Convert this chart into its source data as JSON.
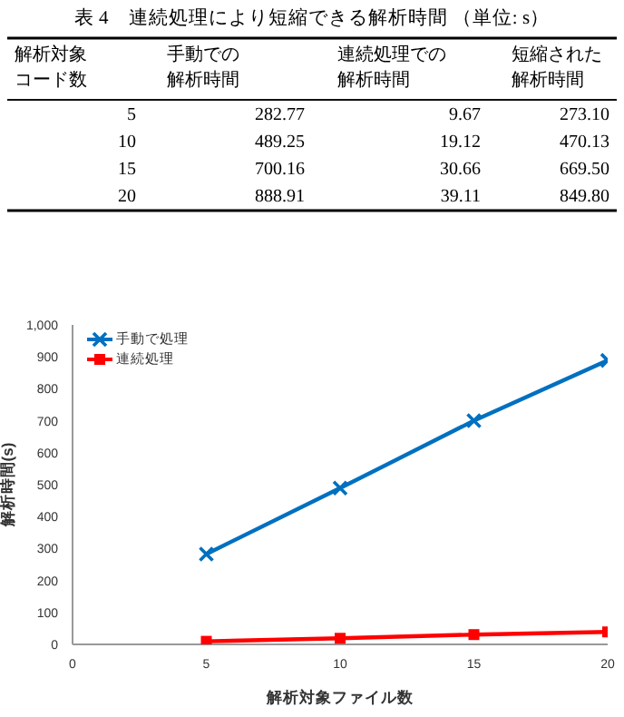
{
  "chart_data": [
    {
      "type": "heatmap",
      "title": "表 4　連続処理により短縮できる解析時間 （単位: s）",
      "ylabel": "解析対象コード数",
      "categories": [
        "手動での解析時間",
        "連続処理での解析時間",
        "短縮された解析時間"
      ],
      "y_categories": [
        "5",
        "10",
        "15",
        "20"
      ],
      "cells": [
        [
          282.77,
          9.67,
          273.1
        ],
        [
          489.25,
          19.12,
          470.13
        ],
        [
          700.16,
          30.66,
          669.5
        ],
        [
          888.91,
          39.11,
          849.8
        ]
      ],
      "cell_labels": [
        [
          "282.77",
          "9.67",
          "273.10"
        ],
        [
          "489.25",
          "19.12",
          "470.13"
        ],
        [
          "700.16",
          "30.66",
          "669.50"
        ],
        [
          "888.91",
          "39.11",
          "849.80"
        ]
      ]
    },
    {
      "type": "line",
      "xlabel": "解析対象ファイル数",
      "ylabel": "解析時間(s)",
      "x": [
        5,
        10,
        15,
        20
      ],
      "xlim": [
        0,
        20
      ],
      "xticks": [
        0,
        5,
        10,
        15,
        20
      ],
      "ylim": [
        0,
        1000
      ],
      "yticks": [
        0,
        100,
        200,
        300,
        400,
        500,
        600,
        700,
        800,
        900,
        {
          "value": 1000,
          "label": "1,000"
        }
      ],
      "legend": "top left",
      "series": [
        {
          "name": "手動で処理",
          "color": "#0070c0",
          "marker": "cross",
          "values": [
            282.77,
            489.25,
            700.16,
            888.91
          ]
        },
        {
          "name": "連続処理",
          "color": "#ff0000",
          "marker": "square",
          "values": [
            9.67,
            19.12,
            30.66,
            39.11
          ]
        }
      ]
    }
  ]
}
